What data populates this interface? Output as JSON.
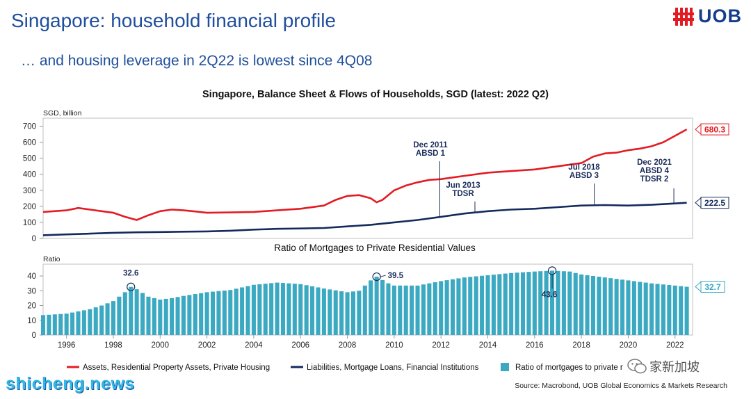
{
  "slide": {
    "title": "Singapore: household financial profile",
    "subtitle": "… and housing leverage in 2Q22 is lowest since 4Q08"
  },
  "logo": {
    "text": "UOB"
  },
  "watermark": {
    "text": "shicheng.news"
  },
  "wechat": {
    "text": "家新加坡"
  },
  "source": {
    "text": "Source: Macrobond, UOB Global Economics & Markets Research"
  },
  "colors": {
    "assets": "#e31b23",
    "liabilities": "#142a5c",
    "ratio": "#3aa9c1",
    "title": "#1f4e9c"
  },
  "chart_data": [
    {
      "type": "line",
      "title": "Singapore, Balance Sheet & Flows of Households, SGD (latest: 2022 Q2)",
      "ylabel": "SGD, billion",
      "xlim": [
        1995,
        2022.75
      ],
      "ylim": [
        0,
        750
      ],
      "yticks": [
        0,
        100,
        200,
        300,
        400,
        500,
        600,
        700
      ],
      "xticks": [
        1996,
        1998,
        2000,
        2002,
        2004,
        2006,
        2008,
        2010,
        2012,
        2014,
        2016,
        2018,
        2020,
        2022
      ],
      "series": [
        {
          "name": "Assets, Residential Property Assets, Private Housing",
          "x": [
            1995,
            1996,
            1996.5,
            1997,
            1997.5,
            1998,
            1998.5,
            1999,
            1999.5,
            2000,
            2000.5,
            2001,
            2001.5,
            2002,
            2003,
            2004,
            2005,
            2006,
            2007,
            2007.5,
            2008,
            2008.5,
            2009,
            2009.25,
            2009.5,
            2010,
            2010.5,
            2011,
            2011.5,
            2012,
            2012.5,
            2013,
            2014,
            2015,
            2016,
            2017,
            2018,
            2018.5,
            2019,
            2019.5,
            2020,
            2020.5,
            2021,
            2021.5,
            2022,
            2022.5
          ],
          "values": [
            165,
            175,
            190,
            180,
            170,
            160,
            135,
            115,
            145,
            170,
            180,
            175,
            168,
            160,
            162,
            165,
            175,
            185,
            205,
            240,
            265,
            270,
            250,
            225,
            240,
            300,
            330,
            350,
            365,
            370,
            380,
            390,
            410,
            420,
            430,
            450,
            470,
            510,
            530,
            535,
            550,
            560,
            575,
            600,
            640,
            680.3
          ]
        },
        {
          "name": "Liabilities, Mortgage Loans, Financial Institutions",
          "x": [
            1995,
            1996,
            1997,
            1998,
            1999,
            2000,
            2001,
            2002,
            2003,
            2004,
            2005,
            2006,
            2007,
            2008,
            2009,
            2010,
            2011,
            2012,
            2013,
            2014,
            2015,
            2016,
            2017,
            2018,
            2019,
            2020,
            2021,
            2022,
            2022.5
          ],
          "values": [
            20,
            25,
            30,
            35,
            38,
            40,
            42,
            44,
            48,
            55,
            60,
            62,
            65,
            75,
            85,
            100,
            115,
            135,
            155,
            170,
            180,
            185,
            195,
            205,
            208,
            205,
            210,
            218,
            222.5
          ]
        }
      ],
      "latest_labels": [
        "680.3",
        "222.5"
      ],
      "annotations": [
        {
          "lines": [
            "Dec 2011",
            "ABSD 1"
          ],
          "x": 2011.95,
          "y": 135
        },
        {
          "lines": [
            "Jun 2013",
            "TDSR"
          ],
          "x": 2013.45,
          "y": 160
        },
        {
          "lines": [
            "Jul 2018",
            "ABSD 3"
          ],
          "x": 2018.55,
          "y": 205
        },
        {
          "lines": [
            "Dec 2021",
            "ABSD 4",
            "TDSR 2"
          ],
          "x": 2021.95,
          "y": 215
        }
      ]
    },
    {
      "type": "bar",
      "title": "Ratio of Mortgages to Private Residential Values",
      "ylabel": "Ratio",
      "ylim": [
        0,
        48
      ],
      "yticks": [
        0,
        10,
        20,
        30,
        40
      ],
      "latest_label": "32.7",
      "keypoints": [
        [
          1995.0,
          13.5
        ],
        [
          1996.0,
          14.5
        ],
        [
          1996.5,
          16.0
        ],
        [
          1997.0,
          17.5
        ],
        [
          1997.5,
          20.0
        ],
        [
          1998.0,
          23.0
        ],
        [
          1998.5,
          29.0
        ],
        [
          1998.75,
          32.6
        ],
        [
          1999.0,
          31.0
        ],
        [
          1999.5,
          26.0
        ],
        [
          2000.0,
          24.0
        ],
        [
          2000.5,
          25.0
        ],
        [
          2001.0,
          26.5
        ],
        [
          2002.0,
          29.0
        ],
        [
          2003.0,
          30.5
        ],
        [
          2004.0,
          34.0
        ],
        [
          2005.0,
          35.5
        ],
        [
          2006.0,
          34.5
        ],
        [
          2007.0,
          31.5
        ],
        [
          2008.0,
          29.0
        ],
        [
          2008.5,
          30.0
        ],
        [
          2009.0,
          37.0
        ],
        [
          2009.25,
          39.5
        ],
        [
          2009.75,
          35.0
        ],
        [
          2010.0,
          33.5
        ],
        [
          2011.0,
          33.5
        ],
        [
          2012.0,
          36.5
        ],
        [
          2013.0,
          39.0
        ],
        [
          2014.0,
          40.5
        ],
        [
          2015.0,
          42.0
        ],
        [
          2016.0,
          43.0
        ],
        [
          2016.75,
          43.6
        ],
        [
          2017.5,
          43.0
        ],
        [
          2018.0,
          41.0
        ],
        [
          2019.0,
          39.0
        ],
        [
          2020.0,
          37.0
        ],
        [
          2021.0,
          35.0
        ],
        [
          2022.0,
          33.5
        ],
        [
          2022.5,
          32.7
        ]
      ],
      "callouts": [
        {
          "label": "32.6",
          "x": 1998.75,
          "y": 32.6
        },
        {
          "label": "39.5",
          "x": 2009.25,
          "y": 39.5
        },
        {
          "label": "43.6",
          "x": 2016.75,
          "y": 43.6
        }
      ]
    }
  ],
  "legend": [
    {
      "label": "Assets, Residential Property Assets, Private Housing",
      "kind": "line",
      "color": "#e31b23"
    },
    {
      "label": "Liabilities, Mortgage Loans, Financial Institutions",
      "kind": "line",
      "color": "#142a5c"
    },
    {
      "label": "Ratio of mortgages to private r",
      "kind": "box",
      "color": "#3aa9c1"
    }
  ]
}
